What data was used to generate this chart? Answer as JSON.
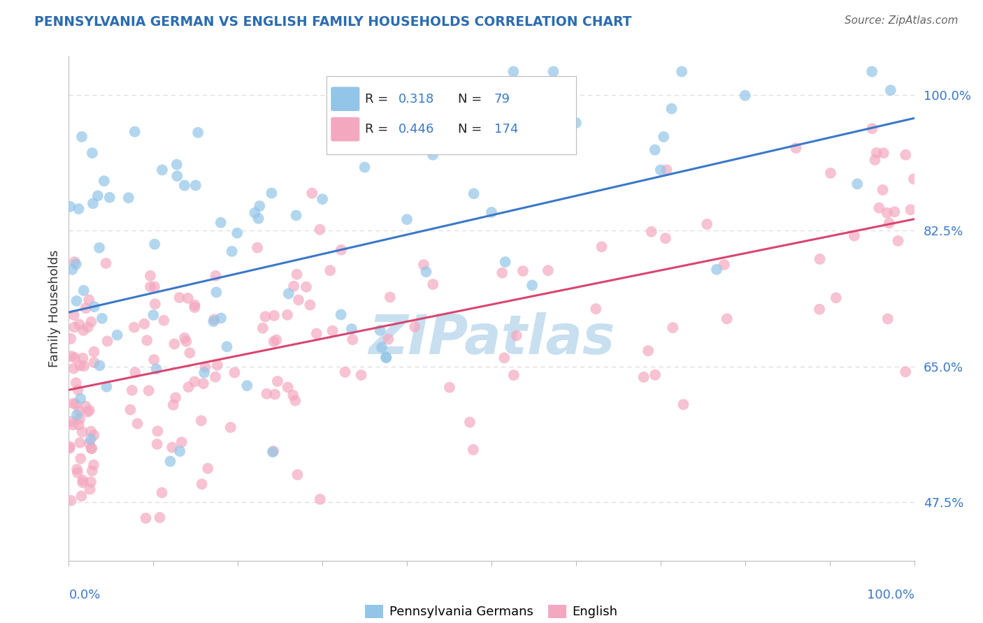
{
  "title": "PENNSYLVANIA GERMAN VS ENGLISH FAMILY HOUSEHOLDS CORRELATION CHART",
  "source": "Source: ZipAtlas.com",
  "ylabel": "Family Households",
  "xlim": [
    0,
    100
  ],
  "ylim": [
    40,
    105
  ],
  "yticks": [
    47.5,
    65.0,
    82.5,
    100.0
  ],
  "ytick_labels": [
    "47.5%",
    "65.0%",
    "82.5%",
    "100.0%"
  ],
  "legend_blue_R": "0.318",
  "legend_blue_N": "79",
  "legend_pink_R": "0.446",
  "legend_pink_N": "174",
  "blue_color": "#92C5E8",
  "pink_color": "#F4A8C0",
  "blue_line_color": "#3A78C9",
  "pink_line_color": "#D94570",
  "title_color": "#2B6CB0",
  "source_color": "#666666",
  "watermark": "ZIPatlas",
  "watermark_color": "#C8DFF0",
  "blue_line_y0": 72,
  "blue_line_y1": 97,
  "pink_line_y0": 62,
  "pink_line_y1": 84,
  "blue_seed": 101,
  "pink_seed": 202,
  "n_blue": 79,
  "n_pink": 174,
  "grid_color": "#DDDDDD",
  "spine_color": "#BBBBBB",
  "tick_color": "#3A78C9",
  "ylabel_color": "#333333",
  "legend_label_blue": "Pennsylvania Germans",
  "legend_label_pink": "English"
}
